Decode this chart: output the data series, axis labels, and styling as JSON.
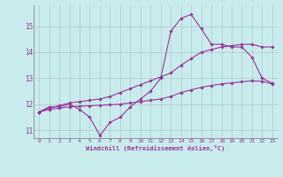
{
  "xlabel": "Windchill (Refroidissement éolien,°C)",
  "background_color": "#c8ecec",
  "line_color": "#993399",
  "grid_color": "#b0c8c8",
  "hours": [
    0,
    1,
    2,
    3,
    4,
    5,
    6,
    7,
    8,
    9,
    10,
    11,
    12,
    13,
    14,
    15,
    16,
    17,
    18,
    19,
    20,
    21,
    22,
    23
  ],
  "line1_zigzag": [
    11.7,
    11.9,
    11.9,
    12.0,
    11.8,
    11.5,
    10.8,
    11.3,
    11.5,
    11.9,
    12.2,
    12.5,
    13.0,
    14.8,
    15.3,
    15.45,
    14.9,
    14.3,
    14.3,
    14.2,
    14.2,
    13.8,
    13.0,
    12.8
  ],
  "line2_high": [
    11.7,
    11.85,
    11.95,
    12.05,
    12.1,
    12.15,
    12.2,
    12.3,
    12.45,
    12.6,
    12.75,
    12.9,
    13.05,
    13.2,
    13.5,
    13.75,
    14.0,
    14.1,
    14.2,
    14.25,
    14.3,
    14.3,
    14.2,
    14.2
  ],
  "line3_low": [
    11.7,
    11.8,
    11.85,
    11.9,
    11.92,
    11.94,
    11.96,
    11.98,
    12.0,
    12.05,
    12.1,
    12.15,
    12.2,
    12.3,
    12.45,
    12.55,
    12.65,
    12.72,
    12.78,
    12.82,
    12.86,
    12.9,
    12.88,
    12.78
  ],
  "ylim": [
    10.7,
    15.8
  ],
  "yticks": [
    11,
    12,
    13,
    14,
    15
  ],
  "xticks": [
    0,
    1,
    2,
    3,
    4,
    5,
    6,
    7,
    8,
    9,
    10,
    11,
    12,
    13,
    14,
    15,
    16,
    17,
    18,
    19,
    20,
    21,
    22,
    23
  ]
}
